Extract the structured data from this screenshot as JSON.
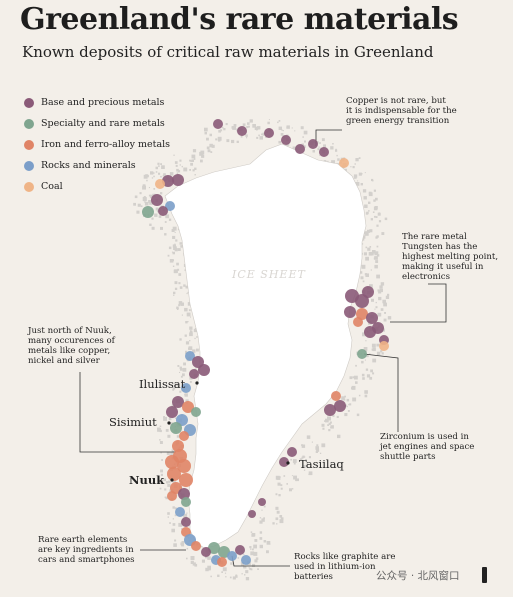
{
  "title": "Greenland's rare materials",
  "subtitle": "Known deposits of critical raw materials in Greenland",
  "legend": [
    {
      "label": "Base and precious metals",
      "color": "#8a5a78"
    },
    {
      "label": "Specialty and rare metals",
      "color": "#7fa58f"
    },
    {
      "label": "Iron and ferro-alloy metals",
      "color": "#e08466"
    },
    {
      "label": "Rocks and minerals",
      "color": "#7b9ec9"
    },
    {
      "label": "Coal",
      "color": "#efb487"
    }
  ],
  "ice_sheet_label": "ICE SHEET",
  "places": {
    "ilulissat": "Ilulissat",
    "sisimiut": "Sisimiut",
    "nuuk": "Nuuk",
    "tasiilaq": "Tasiilaq"
  },
  "annotations": {
    "copper": [
      "Copper is not rare, but",
      "it is indispensable for the",
      "green energy transition"
    ],
    "tungsten": [
      "The rare metal",
      "Tungsten has the",
      "highest melting point,",
      "making it useful in",
      "electronics"
    ],
    "nuuk_north": [
      "Just north of Nuuk,",
      "many occurences of",
      "metals like copper,",
      "nickel and silver"
    ],
    "zirconium": [
      "Zirconium is used in",
      "jet engines and space",
      "shuttle parts"
    ],
    "rare_earth": [
      "Rare earth elements",
      "are key ingredients in",
      "cars and smartphones"
    ],
    "graphite": [
      "Rocks like graphite are",
      "used in lithium-ion",
      "batteries"
    ]
  },
  "watermark": "公众号 · 北风窗口"
}
